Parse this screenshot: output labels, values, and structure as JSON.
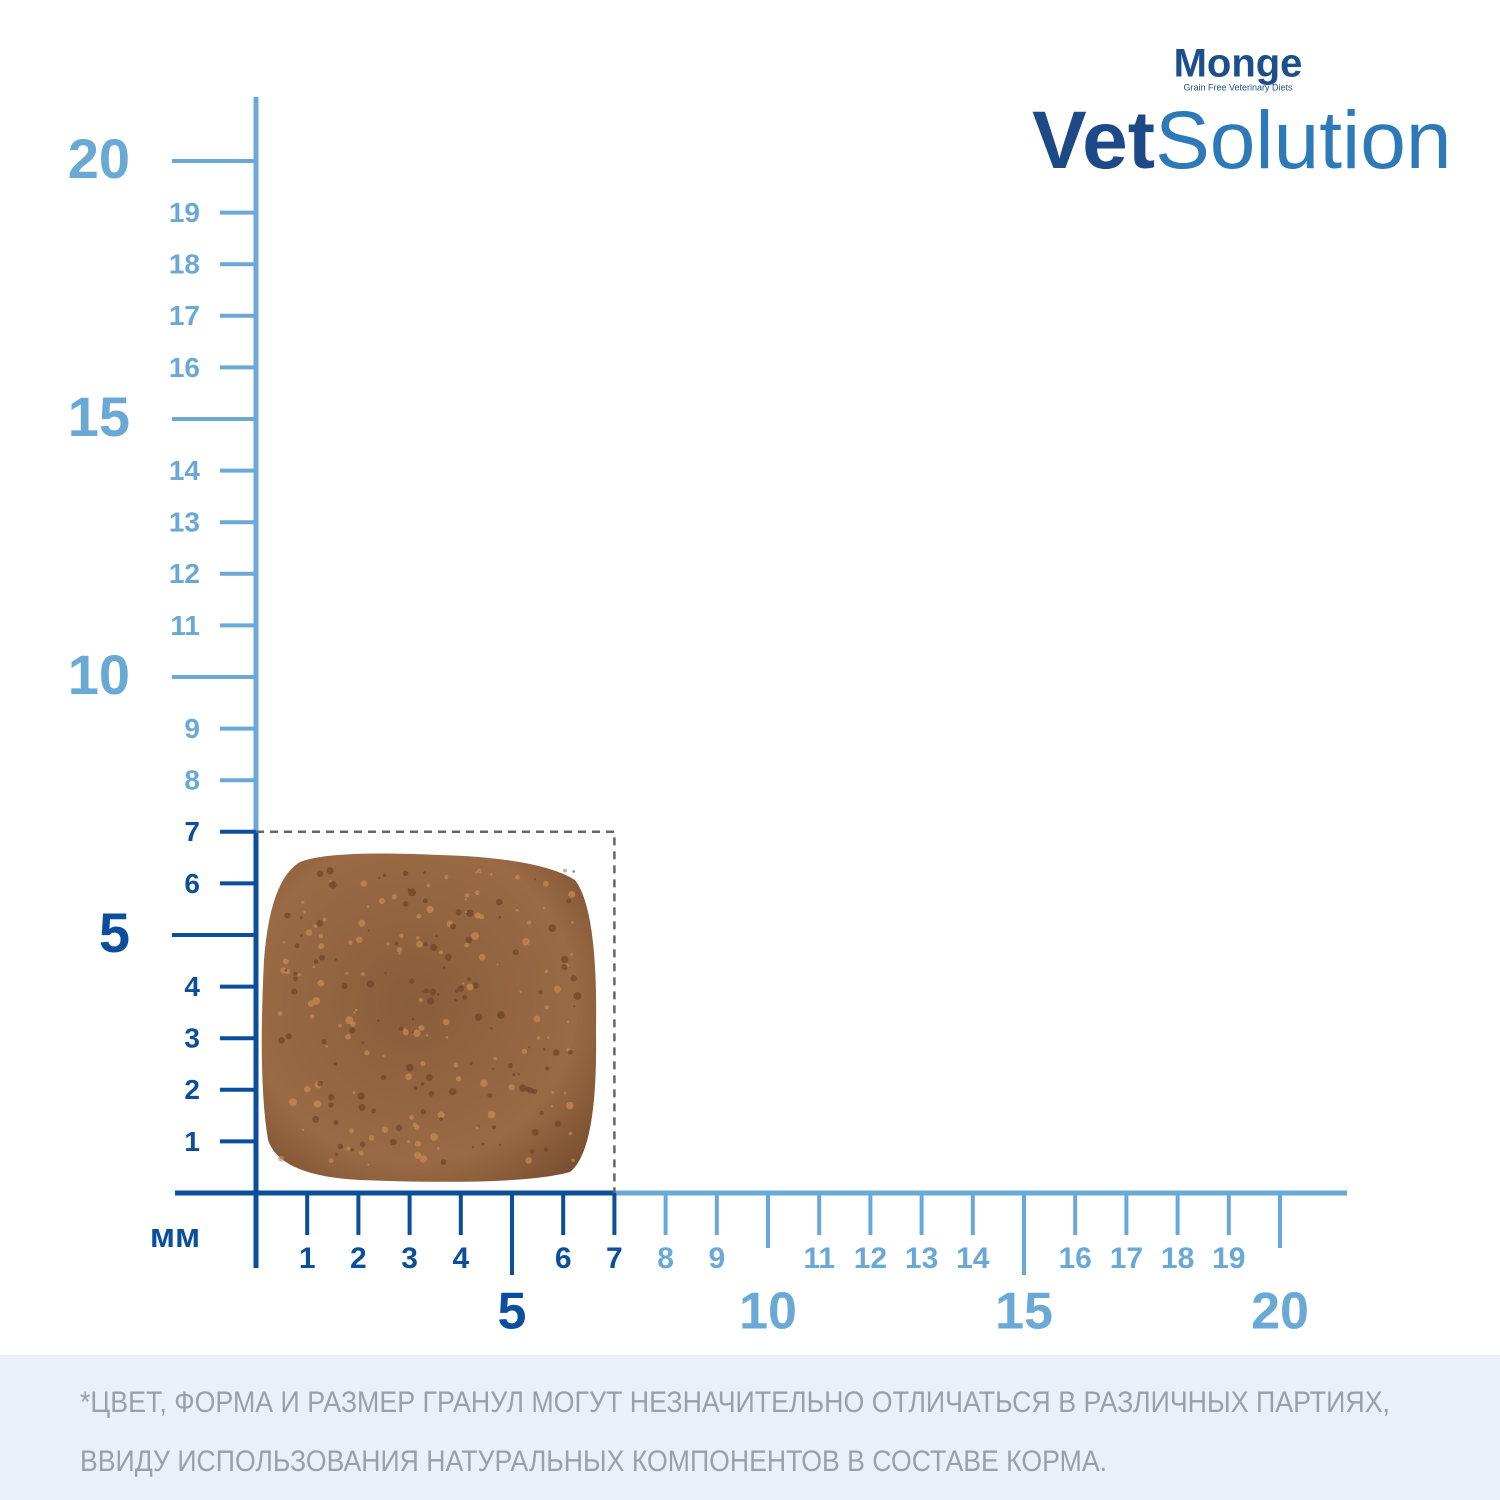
{
  "logo": {
    "brand": "Monge",
    "tagline": "Grain Free Veterinary Diets",
    "vet": "Vet",
    "solution": "Solution"
  },
  "ruler": {
    "unit": "мм",
    "ticks": [
      1,
      2,
      3,
      4,
      5,
      6,
      7,
      8,
      9,
      10,
      11,
      12,
      13,
      14,
      15,
      16,
      17,
      18,
      19,
      20
    ],
    "kibble_size": 7,
    "dark_color": "#0b4f9c",
    "light_color": "#6aa9d6"
  },
  "disclaimer": [
    "*ЦВЕТ, ФОРМА И РАЗМЕР ГРАНУЛ МОГУТ НЕЗНАЧИТЕЛЬНО ОТЛИЧАТЬСЯ В РАЗЛИЧНЫХ ПАРТИЯХ,",
    "ВВИДУ ИСПОЛЬЗОВАНИЯ НАТУРАЛЬНЫХ КОМПОНЕНТОВ В СОСТАВЕ КОРМА."
  ]
}
